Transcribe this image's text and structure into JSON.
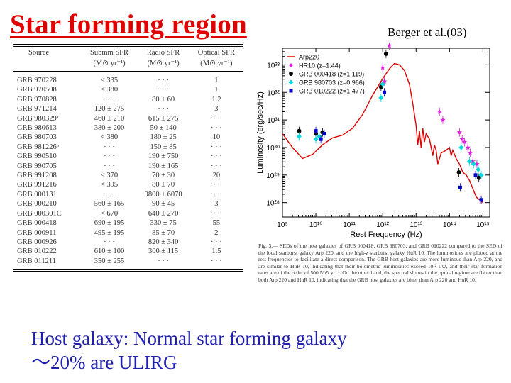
{
  "slide": {
    "title": "Star forming region",
    "citation": "Berger et al.(03)",
    "summary_line1": "Host galaxy: Normal star forming galaxy",
    "summary_line2": "～20% are ULIRG"
  },
  "table": {
    "headers": [
      "Source",
      "Submm SFR",
      "Radio SFR",
      "Optical SFR"
    ],
    "units": [
      "",
      "(M⊙ yr⁻¹)",
      "(M⊙ yr⁻¹)",
      "(M⊙ yr⁻¹)"
    ],
    "rows": [
      [
        "GRB 970228",
        "< 335",
        "· · ·",
        "1"
      ],
      [
        "GRB 970508",
        "< 380",
        "· · ·",
        "1"
      ],
      [
        "GRB 970828",
        "· · ·",
        "80 ± 60",
        "1.2"
      ],
      [
        "GRB 971214",
        "120 ± 275",
        "· · ·",
        "3"
      ],
      [
        "GRB 980329ᵃ",
        "460 ± 210",
        "615 ± 275",
        "· · ·"
      ],
      [
        "GRB 980613",
        "380 ± 200",
        "50 ± 140",
        "· · ·"
      ],
      [
        "GRB 980703",
        "< 380",
        "180 ± 25",
        "10"
      ],
      [
        "GRB 981226ᵇ",
        "· · ·",
        "150 ± 85",
        "· · ·"
      ],
      [
        "GRB 990510",
        "· · ·",
        "190 ± 750",
        "· · ·"
      ],
      [
        "GRB 990705",
        "· · ·",
        "190 ± 165",
        "· · ·"
      ],
      [
        "GRB 991208",
        "< 370",
        "70 ± 30",
        "20"
      ],
      [
        "GRB 991216",
        "< 395",
        "80 ± 70",
        "· · ·"
      ],
      [
        "GRB 000131",
        "· · ·",
        "9800 ± 6070",
        "· · ·"
      ],
      [
        "GRB 000210",
        "560 ± 165",
        "90 ± 45",
        "3"
      ],
      [
        "GRB 000301C",
        "< 670",
        "640 ± 270",
        "· · ·"
      ],
      [
        "GRB 000418",
        "690 ± 195",
        "330 ± 75",
        "55"
      ],
      [
        "GRB 000911",
        "495 ± 195",
        "85 ± 70",
        "2"
      ],
      [
        "GRB 000926",
        "· · ·",
        "820 ± 340",
        "· · ·"
      ],
      [
        "GRB 010222",
        "610 ± 100",
        "300 ± 115",
        "1.5"
      ],
      [
        "GRB 011211",
        "350 ± 255",
        "· · ·",
        "· · ·"
      ]
    ]
  },
  "caption": "Fig. 3.— SEDs of the host galaxies of GRB 000418, GRB 980703, and GRB 010222 compared to the SED of the local starburst galaxy Arp 220, and the high-z starburst galaxy HuR 10. The luminosities are plotted at the rest frequencies to facilitate a direct comparison. The GRB host galaxies are more luminous than Arp 220, and are similar to HuR 10, indicating that their bolometric luminosities exceed 10¹² L⊙, and their star formation rates are of the order of 500 M⊙ yr⁻¹. On the other hand, the spectral slopes in the optical regime are flatter than both Arp 220 and HuR 10, indicating that the GRB host galaxies are bluer than Arp 220 and HuR 10.",
  "chart_data": {
    "type": "scatter",
    "xlabel": "Rest Frequency  (Hz)",
    "ylabel": "Luminosity  (erg/sec/Hz)",
    "xscale": "log",
    "yscale": "log",
    "xlim": [
      1000000000.0,
      1600000000000000.0
    ],
    "ylim": [
      3e+27,
      4e+33
    ],
    "x_ticks": [
      {
        "exp": 9,
        "label": "10⁹"
      },
      {
        "exp": 10,
        "label": "10¹⁰"
      },
      {
        "exp": 11,
        "label": "10¹¹"
      },
      {
        "exp": 12,
        "label": "10¹²"
      },
      {
        "exp": 13,
        "label": "10¹³"
      },
      {
        "exp": 14,
        "label": "10¹⁴"
      },
      {
        "exp": 15,
        "label": "10¹⁵"
      }
    ],
    "y_ticks": [
      {
        "exp": 28,
        "label": "10²⁸"
      },
      {
        "exp": 29,
        "label": "10²⁹"
      },
      {
        "exp": 30,
        "label": "10³⁰"
      },
      {
        "exp": 31,
        "label": "10³¹"
      },
      {
        "exp": 32,
        "label": "10³²"
      },
      {
        "exp": 33,
        "label": "10³³"
      }
    ],
    "legend_position": "top-left",
    "series": [
      {
        "name": "Arp220",
        "kind": "line",
        "color": "#dd0000",
        "points": [
          [
            9.0,
            30.5
          ],
          [
            9.3,
            30.0
          ],
          [
            9.6,
            29.6
          ],
          [
            9.9,
            29.75
          ],
          [
            10.2,
            30.1
          ],
          [
            10.5,
            30.35
          ],
          [
            10.8,
            30.45
          ],
          [
            11.1,
            30.7
          ],
          [
            11.4,
            31.2
          ],
          [
            11.7,
            31.9
          ],
          [
            12.0,
            32.5
          ],
          [
            12.2,
            32.85
          ],
          [
            12.35,
            33.05
          ],
          [
            12.5,
            33.0
          ],
          [
            12.65,
            32.8
          ],
          [
            12.8,
            32.3
          ],
          [
            12.9,
            31.6
          ],
          [
            13.0,
            30.8
          ],
          [
            13.05,
            30.1
          ],
          [
            13.1,
            30.6
          ],
          [
            13.15,
            30.0
          ],
          [
            13.2,
            30.7
          ],
          [
            13.25,
            30.2
          ],
          [
            13.3,
            30.5
          ],
          [
            13.4,
            30.3
          ],
          [
            13.5,
            29.7
          ],
          [
            13.55,
            30.1
          ],
          [
            13.6,
            29.9
          ],
          [
            13.65,
            29.4
          ],
          [
            13.75,
            29.8
          ],
          [
            13.9,
            29.9
          ],
          [
            14.0,
            30.0
          ],
          [
            14.05,
            29.7
          ],
          [
            14.1,
            29.9
          ],
          [
            14.2,
            29.6
          ],
          [
            14.3,
            29.4
          ],
          [
            14.4,
            29.1
          ],
          [
            14.5,
            29.0
          ],
          [
            14.6,
            28.8
          ],
          [
            14.7,
            28.5
          ],
          [
            14.8,
            28.2
          ],
          [
            14.9,
            28.1
          ],
          [
            15.0,
            28.0
          ]
        ]
      },
      {
        "name": "HR10 (z=1.44)",
        "kind": "points",
        "color": "#e020e0",
        "marker": "star",
        "points": [
          [
            12.05,
            32.4
          ],
          [
            12.2,
            33.7
          ],
          [
            12.0,
            32.9
          ],
          [
            13.7,
            31.3
          ],
          [
            13.8,
            31.0
          ],
          [
            14.3,
            30.55
          ],
          [
            14.38,
            30.3
          ],
          [
            14.45,
            30.2
          ],
          [
            14.55,
            30.0
          ],
          [
            14.62,
            29.8
          ],
          [
            14.7,
            29.5
          ],
          [
            14.82,
            29.4
          ]
        ]
      },
      {
        "name": "GRB 000418 (z=1.119)",
        "kind": "points",
        "color": "#000000",
        "marker": "circle",
        "points": [
          [
            9.5,
            30.6
          ],
          [
            10.0,
            30.5
          ],
          [
            10.2,
            30.55
          ],
          [
            11.95,
            32.2
          ],
          [
            12.1,
            33.4
          ],
          [
            14.28,
            29.1
          ],
          [
            14.88,
            28.9
          ]
        ]
      },
      {
        "name": "GRB 980703 (z=0.966)",
        "kind": "points",
        "color": "#00d8e0",
        "marker": "diamond",
        "points": [
          [
            9.5,
            30.4
          ],
          [
            10.0,
            30.3
          ],
          [
            10.1,
            30.4
          ],
          [
            11.95,
            31.8
          ],
          [
            12.0,
            32.3
          ],
          [
            14.35,
            30.0
          ],
          [
            14.6,
            29.5
          ],
          [
            14.72,
            29.4
          ],
          [
            14.86,
            29.2
          ],
          [
            14.95,
            29.0
          ]
        ]
      },
      {
        "name": "GRB 010222 (z=1.477)",
        "kind": "points",
        "color": "#0000cc",
        "marker": "square",
        "points": [
          [
            10.0,
            30.6
          ],
          [
            10.15,
            30.3
          ],
          [
            10.25,
            30.5
          ],
          [
            12.05,
            32.0
          ],
          [
            14.32,
            28.55
          ],
          [
            14.78,
            29.0
          ],
          [
            14.95,
            28.1
          ]
        ]
      }
    ]
  }
}
